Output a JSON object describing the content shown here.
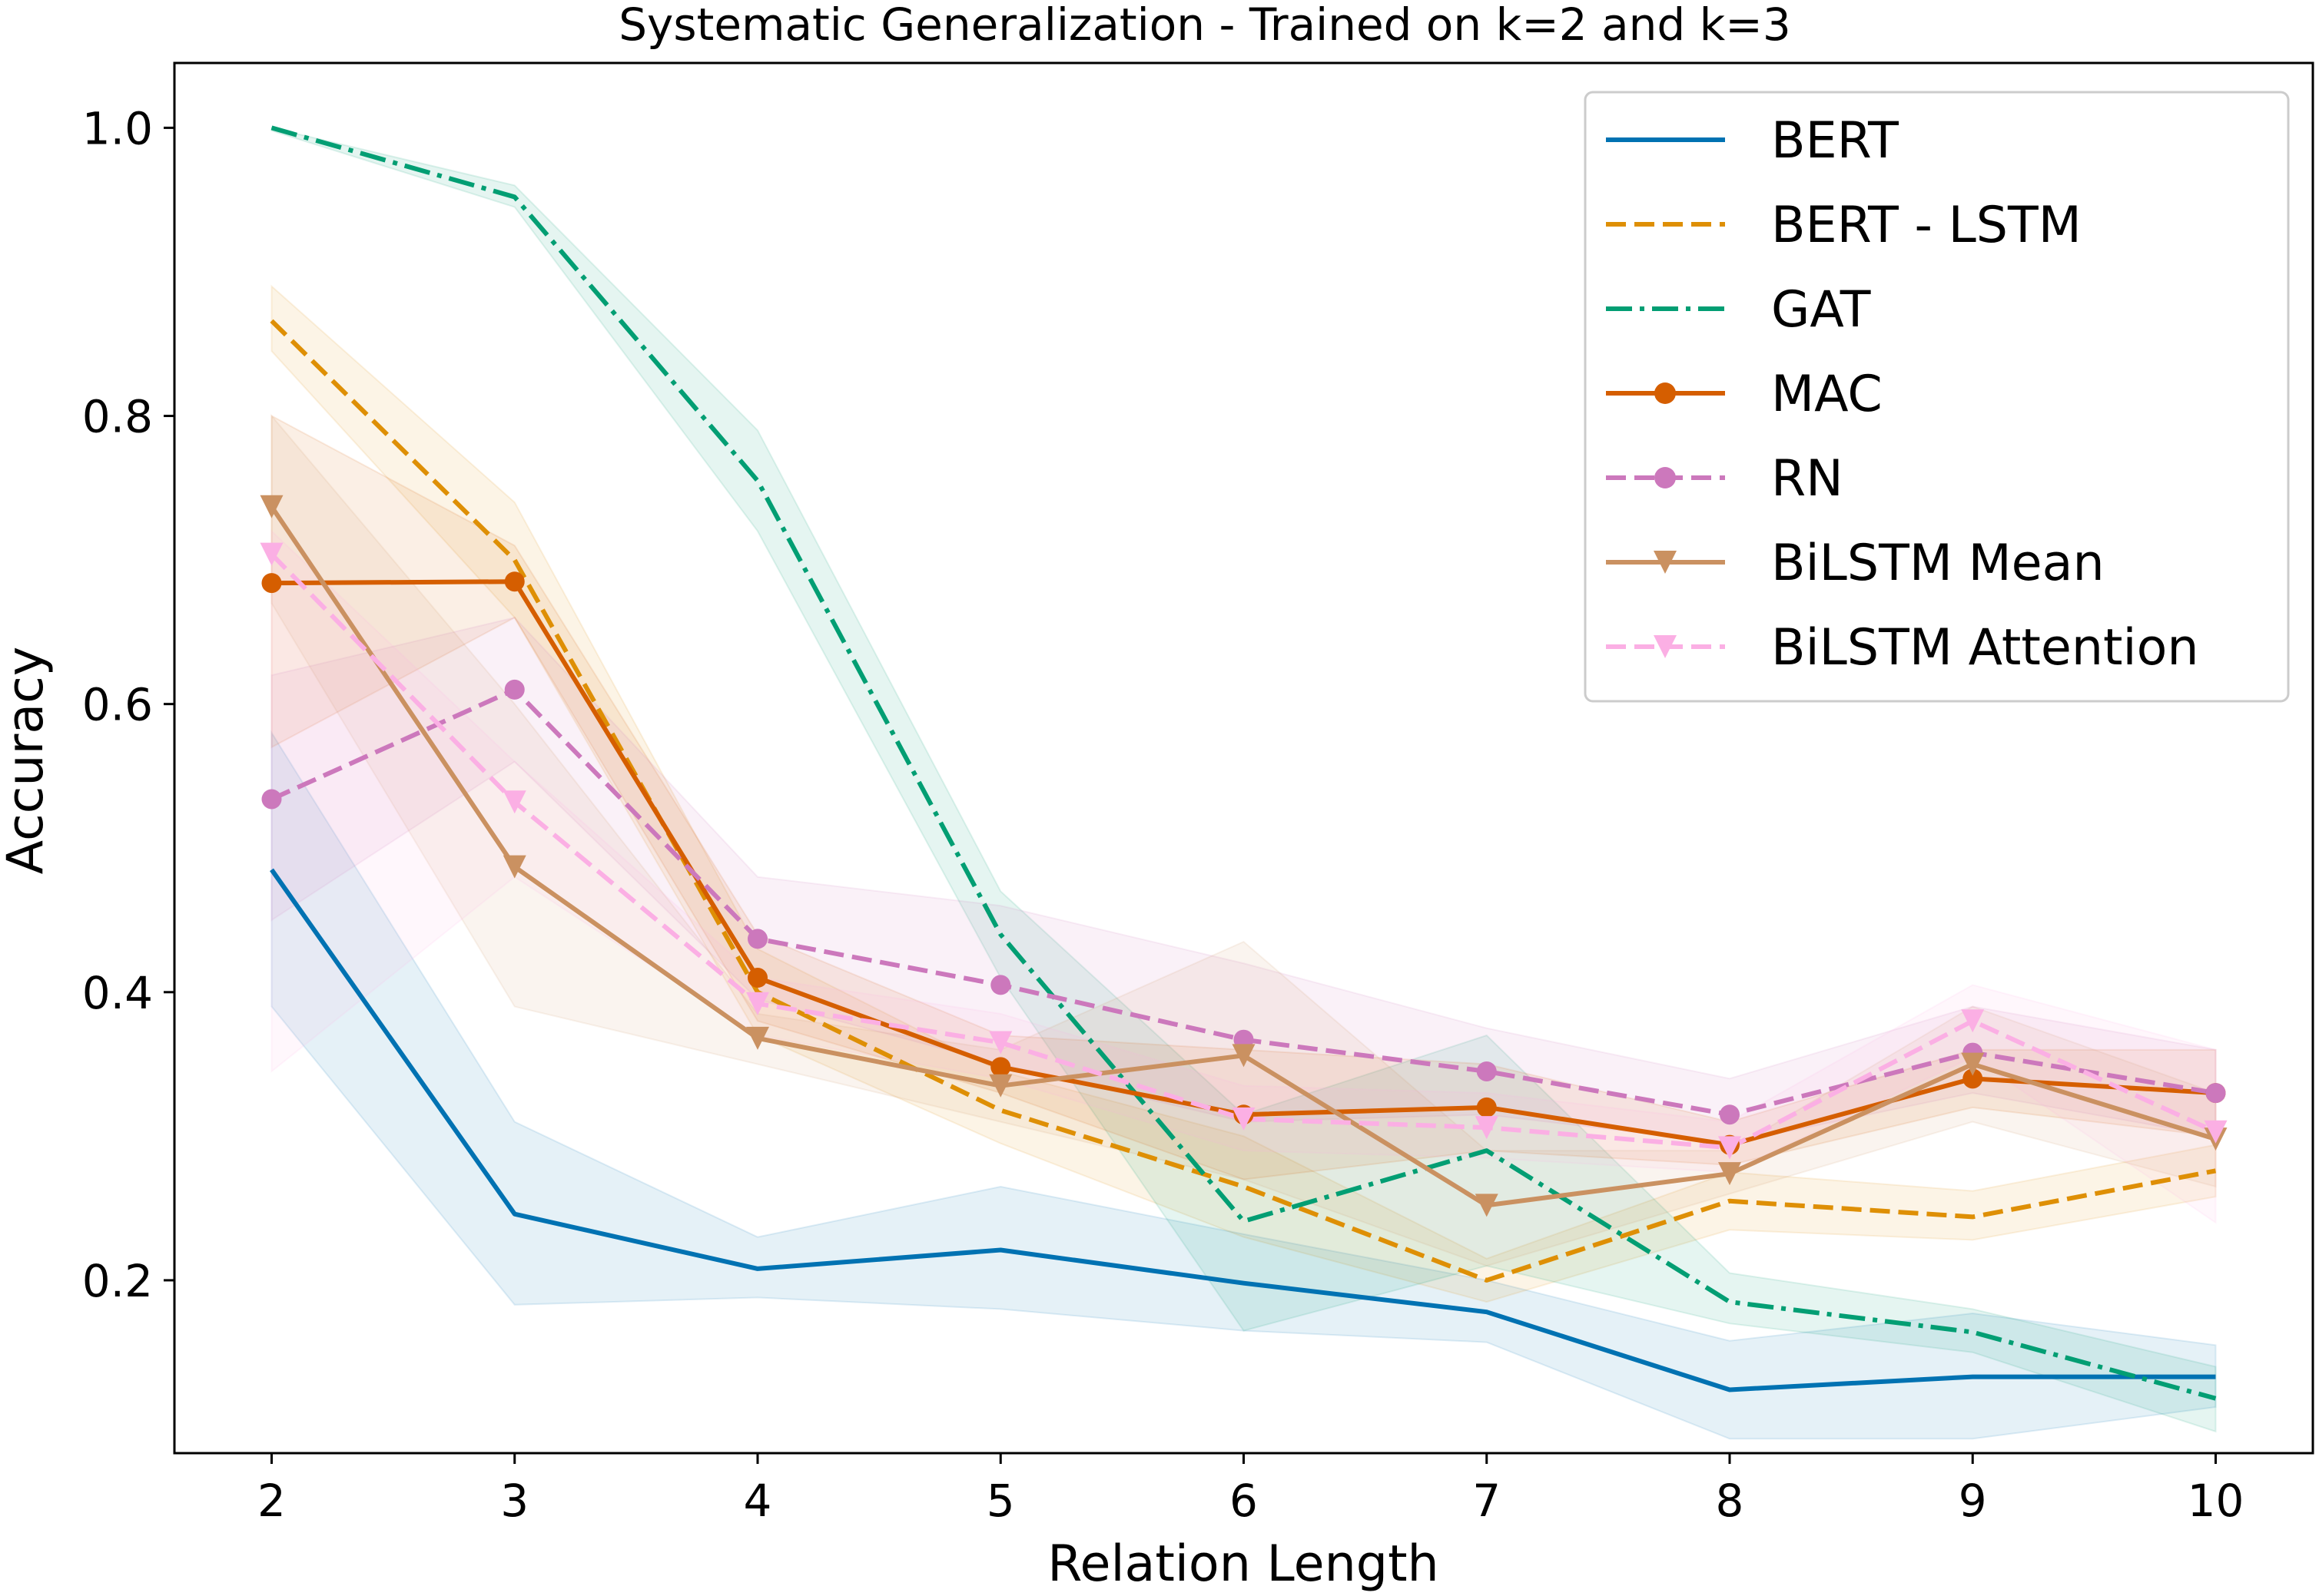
{
  "chart_data": {
    "type": "line",
    "title": "Systematic Generalization - Trained on k=2 and k=3",
    "xlabel": "Relation Length",
    "ylabel": "Accuracy",
    "x": [
      2,
      3,
      4,
      5,
      6,
      7,
      8,
      9,
      10
    ],
    "xlim": [
      1.6,
      10.4
    ],
    "ylim": [
      0.08,
      1.045
    ],
    "xticks": [
      "2",
      "3",
      "4",
      "5",
      "6",
      "7",
      "8",
      "9",
      "10"
    ],
    "yticks": [
      "0.2",
      "0.4",
      "0.6",
      "0.8",
      "1.0"
    ],
    "grid": false,
    "legend_position": "upper right",
    "series": [
      {
        "name": "BERT",
        "color": "#0072b2",
        "dash": "solid",
        "marker": "none",
        "values": [
          0.485,
          0.246,
          0.208,
          0.221,
          0.198,
          0.178,
          0.124,
          0.133,
          0.133
        ],
        "lower": [
          0.39,
          0.183,
          0.188,
          0.18,
          0.165,
          0.157,
          0.09,
          0.09,
          0.112
        ],
        "upper": [
          0.58,
          0.31,
          0.23,
          0.265,
          0.232,
          0.2,
          0.158,
          0.177,
          0.155
        ]
      },
      {
        "name": "BERT - LSTM",
        "color": "#de8f05",
        "dash": "dashed",
        "marker": "none",
        "values": [
          0.866,
          0.7,
          0.4,
          0.318,
          0.265,
          0.2,
          0.255,
          0.244,
          0.276
        ],
        "lower": [
          0.845,
          0.66,
          0.37,
          0.295,
          0.23,
          0.185,
          0.235,
          0.228,
          0.258
        ],
        "upper": [
          0.89,
          0.74,
          0.43,
          0.345,
          0.3,
          0.215,
          0.275,
          0.262,
          0.294
        ]
      },
      {
        "name": "GAT",
        "color": "#029e73",
        "dash": "dashdot",
        "marker": "none",
        "values": [
          1.0,
          0.952,
          0.755,
          0.44,
          0.241,
          0.29,
          0.185,
          0.164,
          0.118
        ],
        "lower": [
          0.998,
          0.945,
          0.72,
          0.41,
          0.165,
          0.21,
          0.17,
          0.15,
          0.095
        ],
        "upper": [
          1.0,
          0.96,
          0.79,
          0.47,
          0.315,
          0.37,
          0.205,
          0.18,
          0.14
        ]
      },
      {
        "name": "MAC",
        "color": "#d55e00",
        "dash": "solid",
        "marker": "circle",
        "values": [
          0.684,
          0.685,
          0.41,
          0.348,
          0.315,
          0.32,
          0.294,
          0.34,
          0.33
        ],
        "lower": [
          0.57,
          0.66,
          0.38,
          0.33,
          0.27,
          0.29,
          0.28,
          0.32,
          0.3
        ],
        "upper": [
          0.8,
          0.71,
          0.44,
          0.37,
          0.36,
          0.35,
          0.31,
          0.36,
          0.36
        ]
      },
      {
        "name": "RN",
        "color": "#cc78bc",
        "dash": "dashed",
        "marker": "circle",
        "values": [
          0.534,
          0.61,
          0.437,
          0.405,
          0.367,
          0.345,
          0.315,
          0.358,
          0.33
        ],
        "lower": [
          0.45,
          0.56,
          0.395,
          0.35,
          0.31,
          0.315,
          0.295,
          0.33,
          0.3
        ],
        "upper": [
          0.62,
          0.66,
          0.48,
          0.46,
          0.42,
          0.375,
          0.34,
          0.39,
          0.36
        ]
      },
      {
        "name": "BiLSTM Mean",
        "color": "#ca9161",
        "dash": "solid",
        "marker": "triangle-down",
        "values": [
          0.737,
          0.487,
          0.368,
          0.335,
          0.356,
          0.252,
          0.274,
          0.35,
          0.298
        ],
        "lower": [
          0.67,
          0.39,
          0.35,
          0.31,
          0.27,
          0.21,
          0.26,
          0.31,
          0.265
        ],
        "upper": [
          0.8,
          0.6,
          0.385,
          0.36,
          0.435,
          0.29,
          0.29,
          0.39,
          0.33
        ]
      },
      {
        "name": "BiLSTM Attention",
        "color": "#fbafe4",
        "dash": "dashed",
        "marker": "triangle-down",
        "values": [
          0.704,
          0.532,
          0.392,
          0.365,
          0.312,
          0.306,
          0.292,
          0.38,
          0.303
        ],
        "lower": [
          0.345,
          0.48,
          0.37,
          0.34,
          0.29,
          0.285,
          0.275,
          0.355,
          0.24
        ],
        "upper": [
          0.72,
          0.56,
          0.41,
          0.385,
          0.335,
          0.33,
          0.31,
          0.405,
          0.36
        ]
      }
    ]
  }
}
